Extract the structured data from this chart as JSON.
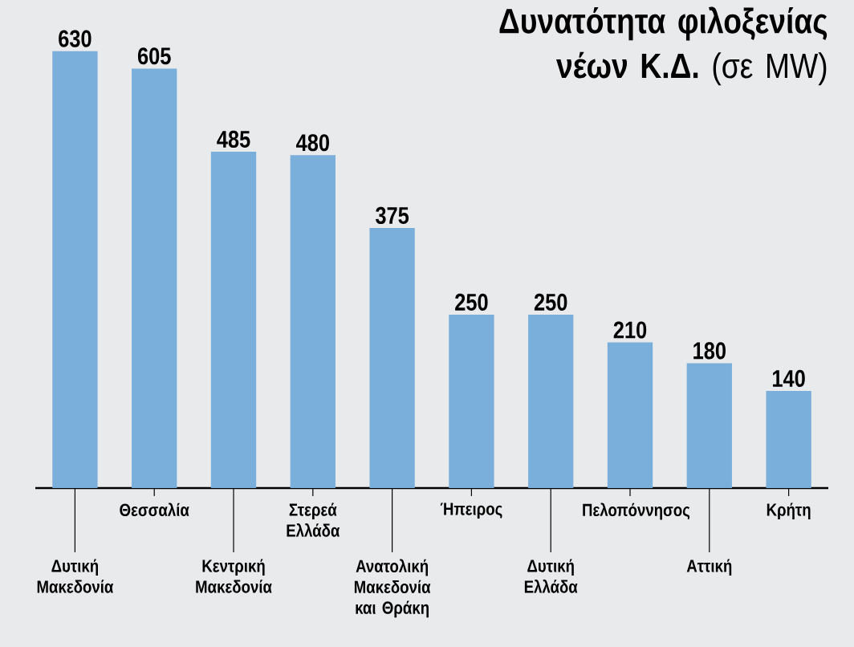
{
  "chart_data": {
    "type": "bar",
    "title": "**Δυνατότητα φιλοξενίας νέων Κ.Δ.** (σε MW)",
    "categories": [
      "Δυτική Μακεδονία",
      "Θεσσαλία",
      "Κεντρική Μακεδονία",
      "Στερεά Ελλάδα",
      "Ανατολική Μακεδονία και Θράκη",
      "Ήπειρος",
      "Δυτική Ελλάδα",
      "Πελοπόννησος",
      "Αττική",
      "Κρήτη"
    ],
    "values": [
      630,
      605,
      485,
      480,
      375,
      250,
      250,
      210,
      180,
      140
    ],
    "color": "#7bafdb",
    "data_labels": true,
    "tick_labels": "x"
  }
}
